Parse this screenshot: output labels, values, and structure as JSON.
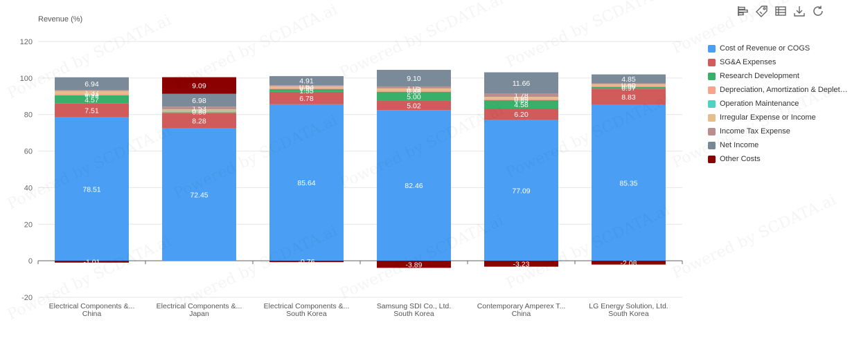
{
  "toolbar": {
    "icons": [
      "bar-toggle-icon",
      "tag-icon",
      "data-view-icon",
      "download-icon",
      "refresh-icon"
    ]
  },
  "watermark_text": "Powered by SCDATA.ai",
  "chart_data": {
    "type": "bar",
    "stacked": true,
    "ylabel": "Revenue (%)",
    "ylim": [
      -20,
      120
    ],
    "yticks": [
      -20,
      0,
      20,
      40,
      60,
      80,
      100,
      120
    ],
    "grid": true,
    "legend_position": "right",
    "categories": [
      {
        "line1": "Electrical Components &...",
        "line2": "China"
      },
      {
        "line1": "Electrical Components &...",
        "line2": "Japan"
      },
      {
        "line1": "Electrical Components &...",
        "line2": "South Korea"
      },
      {
        "line1": "Samsung SDI Co., Ltd.",
        "line2": "South Korea"
      },
      {
        "line1": "Contemporary Amperex T...",
        "line2": "China"
      },
      {
        "line1": "LG Energy Solution, Ltd.",
        "line2": "South Korea"
      }
    ],
    "series": [
      {
        "name": "Cost of Revenue or COGS",
        "color": "#4a9ff5",
        "values": [
          78.51,
          72.45,
          85.64,
          82.46,
          77.09,
          85.35
        ]
      },
      {
        "name": "SG&A Expenses",
        "color": "#d15b5b",
        "values": [
          7.51,
          8.28,
          6.78,
          5.02,
          6.2,
          8.83
        ]
      },
      {
        "name": "Research Development",
        "color": "#3aaf6a",
        "values": [
          4.57,
          0.5,
          1.55,
          5.0,
          4.58,
          0.97
        ]
      },
      {
        "name": "Depreciation, Amortization & Depletion",
        "color": "#f6a58a",
        "values": [
          0.93,
          0.8,
          0.9,
          0.86,
          0.85,
          0.9
        ]
      },
      {
        "name": "Operation Maintenance",
        "color": "#4dd3c4",
        "values": [
          0.03,
          0.3,
          0.03,
          0.03,
          0.03,
          0.03
        ]
      },
      {
        "name": "Irregular Expense or Income",
        "color": "#e6be8a",
        "values": [
          1.37,
          0.53,
          0.6,
          0.95,
          0.95,
          0.6
        ]
      },
      {
        "name": "Income Tax Expense",
        "color": "#bb8e8e",
        "values": [
          0.55,
          1.53,
          0.63,
          1.05,
          1.78,
          0.45
        ]
      },
      {
        "name": "Net Income",
        "color": "#7a8a99",
        "values": [
          6.94,
          6.98,
          4.91,
          9.1,
          11.66,
          4.85
        ]
      },
      {
        "name": "Other Costs",
        "color": "#8b0000",
        "values": [
          -1.01,
          9.09,
          -0.76,
          -3.89,
          -3.23,
          -2.08
        ]
      }
    ],
    "data_labels": [
      [
        "78.51",
        "7.51",
        "4.57",
        "0.93",
        "0.03",
        "1.37",
        "",
        "6.94",
        "-1.01"
      ],
      [
        "72.45",
        "8.28",
        "",
        "0.80",
        "",
        "0.53",
        "1.53",
        "6.98",
        "9.09"
      ],
      [
        "85.64",
        "6.78",
        "1.55",
        "0.90",
        "",
        "0.60",
        "0.63",
        "4.91",
        "-0.76"
      ],
      [
        "82.46",
        "5.02",
        "5.00",
        "0.86",
        "",
        "0.95",
        "1.05",
        "9.10",
        "-3.89"
      ],
      [
        "77.09",
        "6.20",
        "4.58",
        "0.85",
        "",
        "0.95",
        "1.78",
        "11.66",
        "-3.23"
      ],
      [
        "85.35",
        "8.83",
        "0.97",
        "0.90",
        "",
        "0.60",
        "0.45",
        "4.85",
        "-2.08"
      ]
    ]
  }
}
